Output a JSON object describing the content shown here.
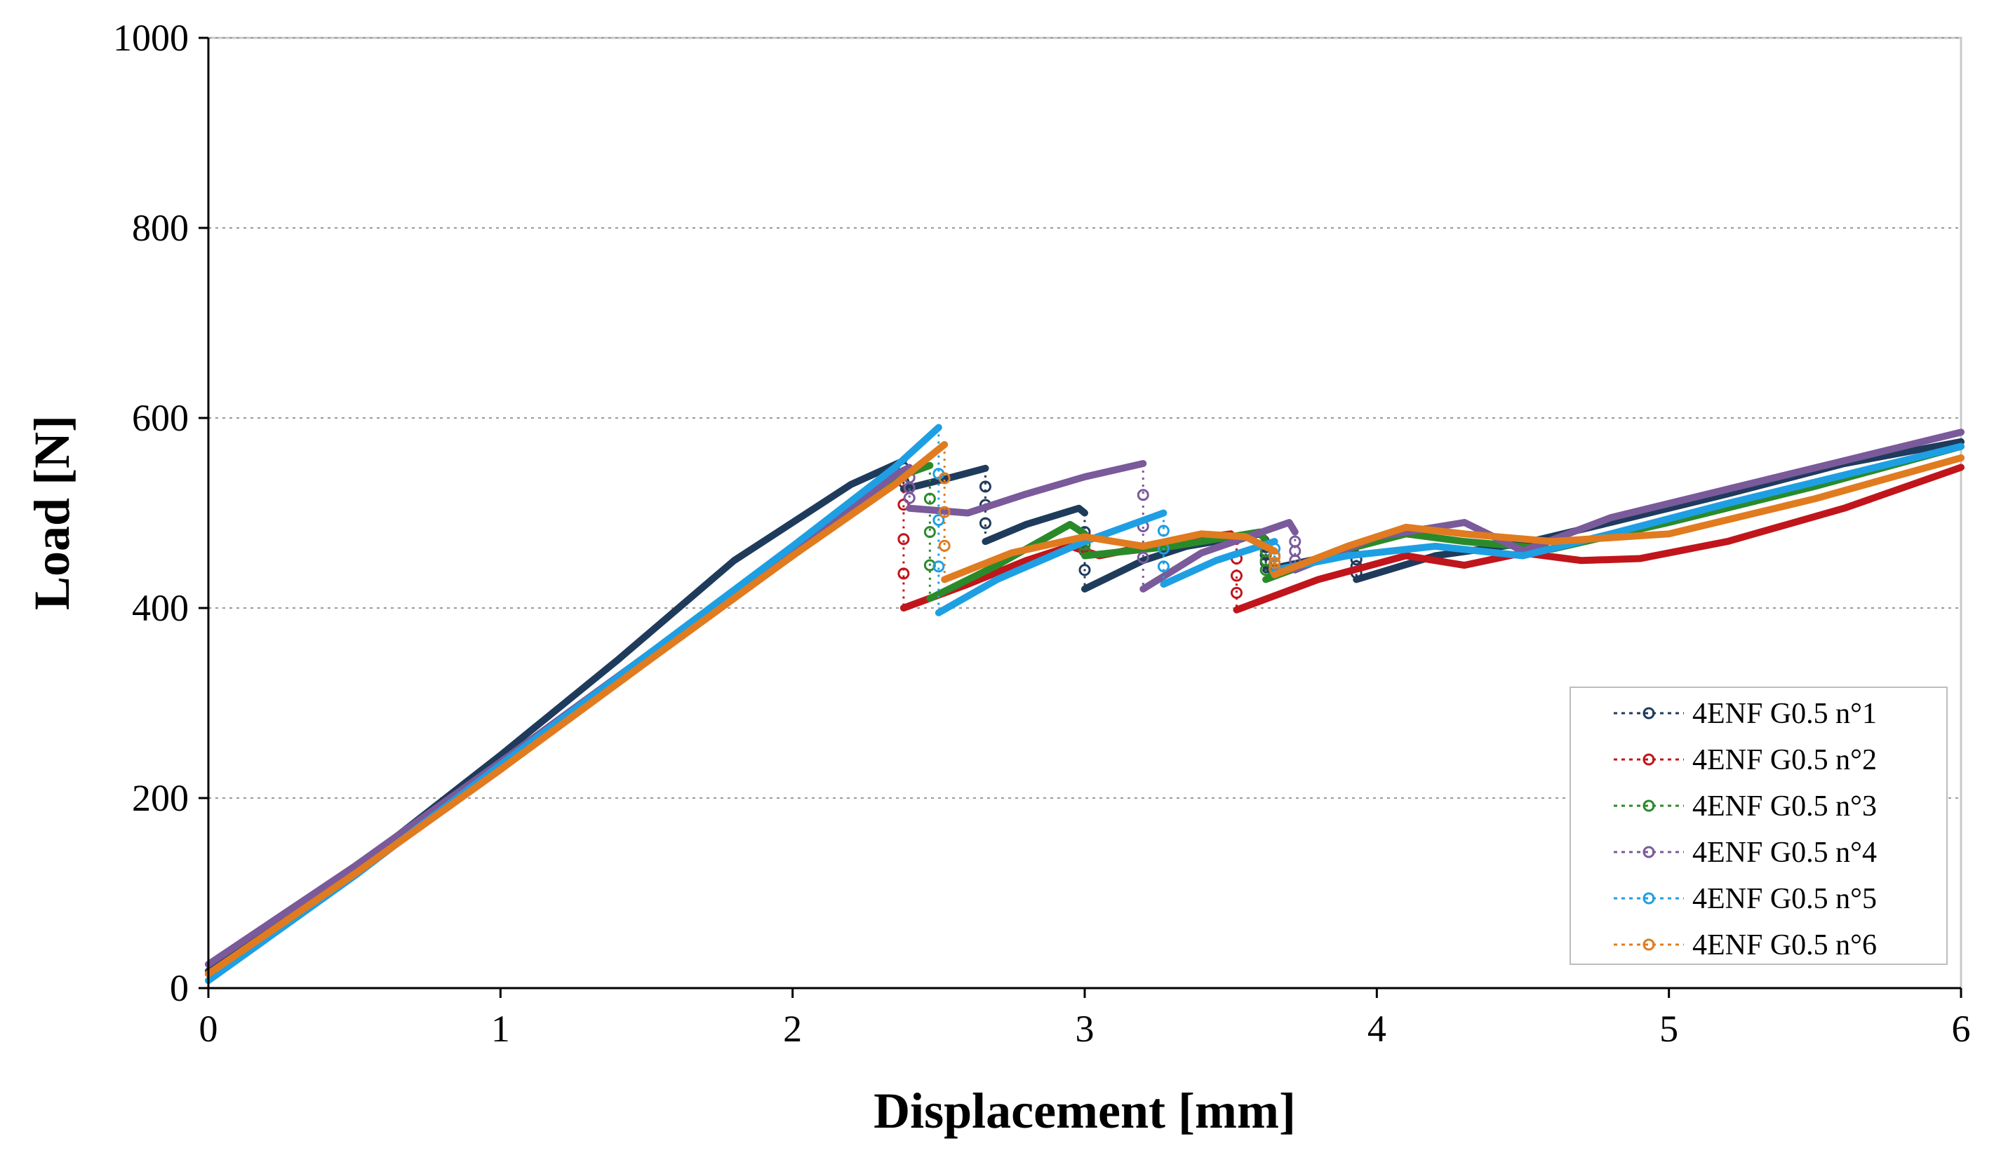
{
  "chart_data": {
    "type": "line",
    "title": "",
    "xlabel": "Displacement [mm]",
    "ylabel": "Load [N]",
    "xlim": [
      0,
      6
    ],
    "ylim": [
      0,
      1000
    ],
    "x_ticks": [
      0,
      1,
      2,
      3,
      4,
      5,
      6
    ],
    "y_ticks": [
      0,
      200,
      400,
      600,
      800,
      1000
    ],
    "x_tick_labels": [
      "0",
      "1",
      "2",
      "3",
      "4",
      "5",
      "6"
    ],
    "y_tick_labels": [
      "0",
      "200",
      "400",
      "600",
      "800",
      "1000"
    ],
    "grid": "horizontal dotted",
    "legend_position": "bottom-right",
    "series": [
      {
        "name": "4ENF G0.5 n°1",
        "color": "#1f3b5c",
        "x": [
          0,
          0.5,
          1.0,
          1.4,
          1.8,
          2.2,
          2.38,
          2.38,
          2.55,
          2.66,
          2.66,
          2.8,
          2.98,
          3.0,
          3.0,
          3.2,
          3.35,
          3.6,
          3.62,
          3.62,
          3.8,
          3.93,
          3.93,
          4.2,
          4.5,
          4.8,
          5.2,
          5.6,
          6.0
        ],
        "y": [
          18,
          125,
          245,
          345,
          450,
          530,
          555,
          525,
          538,
          547,
          470,
          488,
          505,
          500,
          420,
          450,
          465,
          478,
          472,
          440,
          452,
          458,
          430,
          455,
          468,
          490,
          520,
          552,
          575
        ]
      },
      {
        "name": "4ENF G0.5 n°2",
        "color": "#c0151b",
        "x": [
          0,
          0.5,
          1.0,
          1.5,
          2.0,
          2.35,
          2.38,
          2.38,
          2.6,
          2.8,
          2.95,
          3.05,
          3.3,
          3.5,
          3.52,
          3.52,
          3.8,
          4.1,
          4.3,
          4.5,
          4.7,
          4.9,
          5.2,
          5.6,
          6.0
        ],
        "y": [
          15,
          120,
          230,
          345,
          455,
          535,
          545,
          400,
          425,
          450,
          465,
          455,
          470,
          478,
          470,
          398,
          430,
          455,
          445,
          458,
          450,
          452,
          470,
          505,
          548
        ]
      },
      {
        "name": "4ENF G0.5 n°3",
        "color": "#2a8a2a",
        "x": [
          0,
          0.5,
          1.0,
          1.5,
          2.0,
          2.38,
          2.47,
          2.47,
          2.7,
          2.95,
          3.0,
          3.0,
          3.3,
          3.6,
          3.62,
          3.62,
          3.9,
          4.1,
          4.3,
          4.6,
          5.0,
          5.5,
          6.0
        ],
        "y": [
          15,
          120,
          232,
          345,
          455,
          540,
          550,
          410,
          445,
          488,
          478,
          455,
          465,
          480,
          470,
          430,
          462,
          478,
          470,
          462,
          490,
          528,
          570
        ]
      },
      {
        "name": "4ENF G0.5 n°4",
        "color": "#7a5a9a",
        "x": [
          0,
          0.5,
          1.0,
          1.5,
          2.0,
          2.35,
          2.4,
          2.4,
          2.6,
          2.8,
          3.0,
          3.2,
          3.2,
          3.4,
          3.7,
          3.72,
          3.72,
          4.0,
          4.3,
          4.5,
          4.8,
          5.2,
          5.6,
          6.0
        ],
        "y": [
          25,
          128,
          238,
          350,
          460,
          540,
          548,
          505,
          500,
          520,
          538,
          552,
          420,
          458,
          490,
          480,
          440,
          475,
          490,
          460,
          495,
          525,
          555,
          585
        ]
      },
      {
        "name": "4ENF G0.5 n°5",
        "color": "#1e9fe3",
        "x": [
          0,
          0.5,
          1.0,
          1.5,
          2.0,
          2.35,
          2.5,
          2.5,
          2.7,
          3.0,
          3.27,
          3.27,
          3.45,
          3.65,
          3.65,
          3.9,
          4.2,
          4.5,
          4.8,
          5.2,
          5.6,
          6.0
        ],
        "y": [
          8,
          118,
          235,
          350,
          465,
          548,
          590,
          395,
          430,
          470,
          500,
          425,
          450,
          470,
          440,
          455,
          465,
          455,
          478,
          510,
          540,
          570
        ]
      },
      {
        "name": "4ENF G0.5 n°6",
        "color": "#e07b20",
        "x": [
          0,
          0.5,
          1.0,
          1.5,
          2.0,
          2.35,
          2.52,
          2.52,
          2.75,
          3.0,
          3.2,
          3.4,
          3.55,
          3.65,
          3.65,
          3.9,
          4.1,
          4.3,
          4.6,
          5.0,
          5.5,
          6.0
        ],
        "y": [
          15,
          120,
          230,
          343,
          455,
          530,
          572,
          430,
          458,
          475,
          465,
          478,
          475,
          460,
          435,
          465,
          485,
          478,
          470,
          478,
          515,
          558
        ]
      }
    ]
  }
}
